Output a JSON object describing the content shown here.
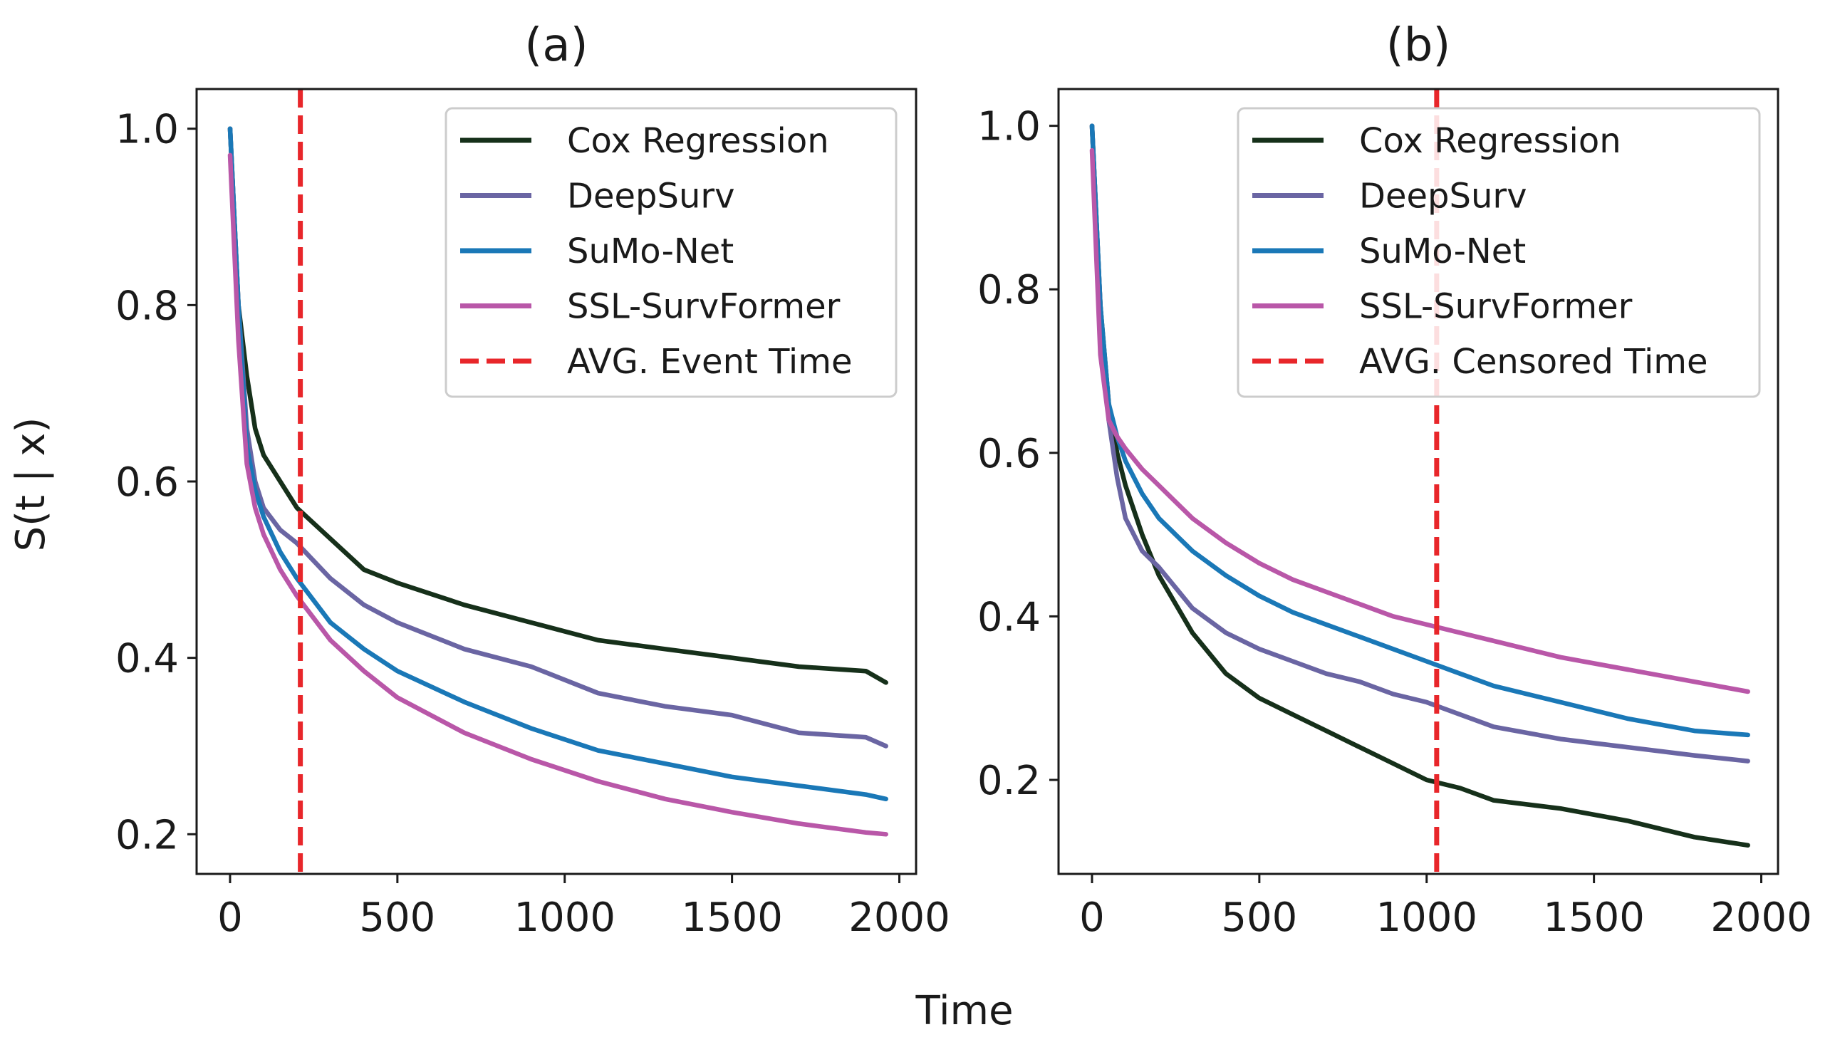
{
  "figure": {
    "ylabel": "S(t | x)",
    "xlabel": "Time"
  },
  "chart_data": [
    {
      "type": "line",
      "title": "(a)",
      "xlim": [
        -100,
        2050
      ],
      "ylim": [
        0.155,
        1.045
      ],
      "xticks": [
        0,
        500,
        1000,
        1500,
        2000
      ],
      "xtick_labels": [
        "0",
        "500",
        "1000",
        "1500",
        "2000"
      ],
      "yticks": [
        0.2,
        0.4,
        0.6,
        0.8,
        1.0
      ],
      "ytick_labels": [
        "0.2",
        "0.4",
        "0.6",
        "0.8",
        "1.0"
      ],
      "legend_position": "top-right",
      "series": [
        {
          "name": "Cox Regression",
          "color": "#16301a",
          "x": [
            0,
            25,
            50,
            75,
            100,
            150,
            200,
            300,
            400,
            500,
            700,
            900,
            1100,
            1300,
            1500,
            1700,
            1900,
            1960
          ],
          "y": [
            1.0,
            0.8,
            0.72,
            0.66,
            0.63,
            0.6,
            0.57,
            0.535,
            0.5,
            0.485,
            0.46,
            0.44,
            0.42,
            0.41,
            0.4,
            0.39,
            0.385,
            0.372
          ]
        },
        {
          "name": "DeepSurv",
          "color": "#6a65a3",
          "x": [
            0,
            25,
            50,
            75,
            100,
            150,
            200,
            300,
            400,
            500,
            700,
            900,
            1100,
            1300,
            1500,
            1700,
            1900,
            1960
          ],
          "y": [
            1.0,
            0.8,
            0.66,
            0.6,
            0.57,
            0.545,
            0.53,
            0.49,
            0.46,
            0.44,
            0.41,
            0.39,
            0.36,
            0.345,
            0.335,
            0.315,
            0.31,
            0.3
          ]
        },
        {
          "name": "SuMo-Net",
          "color": "#1a78b7",
          "x": [
            0,
            25,
            50,
            75,
            100,
            150,
            200,
            300,
            400,
            500,
            700,
            900,
            1100,
            1300,
            1500,
            1700,
            1900,
            1960
          ],
          "y": [
            1.0,
            0.8,
            0.64,
            0.59,
            0.56,
            0.52,
            0.49,
            0.44,
            0.41,
            0.385,
            0.35,
            0.32,
            0.295,
            0.28,
            0.265,
            0.255,
            0.245,
            0.24
          ]
        },
        {
          "name": "SSL-SurvFormer",
          "color": "#b957a8",
          "x": [
            0,
            25,
            50,
            75,
            100,
            150,
            200,
            300,
            400,
            500,
            700,
            900,
            1100,
            1300,
            1500,
            1700,
            1900,
            1960
          ],
          "y": [
            0.97,
            0.76,
            0.62,
            0.57,
            0.54,
            0.5,
            0.47,
            0.42,
            0.385,
            0.355,
            0.315,
            0.285,
            0.26,
            0.24,
            0.225,
            0.212,
            0.202,
            0.2
          ]
        }
      ],
      "reference_line": {
        "name": "AVG. Event Time",
        "x": 210,
        "color": "#e8262a"
      }
    },
    {
      "type": "line",
      "title": "(b)",
      "xlim": [
        -100,
        2050
      ],
      "ylim": [
        0.085,
        1.045
      ],
      "xticks": [
        0,
        500,
        1000,
        1500,
        2000
      ],
      "xtick_labels": [
        "0",
        "500",
        "1000",
        "1500",
        "2000"
      ],
      "yticks": [
        0.2,
        0.4,
        0.6,
        0.8,
        1.0
      ],
      "ytick_labels": [
        "0.2",
        "0.4",
        "0.6",
        "0.8",
        "1.0"
      ],
      "legend_position": "top-right",
      "series": [
        {
          "name": "Cox Regression",
          "color": "#16301a",
          "x": [
            0,
            25,
            50,
            75,
            100,
            150,
            200,
            300,
            400,
            500,
            600,
            700,
            800,
            900,
            1000,
            1100,
            1200,
            1400,
            1600,
            1800,
            1960
          ],
          "y": [
            1.0,
            0.78,
            0.66,
            0.6,
            0.56,
            0.5,
            0.45,
            0.38,
            0.33,
            0.3,
            0.28,
            0.26,
            0.24,
            0.22,
            0.2,
            0.19,
            0.175,
            0.165,
            0.15,
            0.13,
            0.12
          ]
        },
        {
          "name": "DeepSurv",
          "color": "#6a65a3",
          "x": [
            0,
            25,
            50,
            75,
            100,
            150,
            200,
            300,
            400,
            500,
            600,
            700,
            800,
            900,
            1000,
            1100,
            1200,
            1400,
            1600,
            1800,
            1960
          ],
          "y": [
            1.0,
            0.78,
            0.64,
            0.57,
            0.52,
            0.48,
            0.46,
            0.41,
            0.38,
            0.36,
            0.345,
            0.33,
            0.32,
            0.305,
            0.295,
            0.28,
            0.265,
            0.25,
            0.24,
            0.23,
            0.223
          ]
        },
        {
          "name": "SuMo-Net",
          "color": "#1a78b7",
          "x": [
            0,
            25,
            50,
            75,
            100,
            150,
            200,
            300,
            400,
            500,
            600,
            700,
            800,
            900,
            1000,
            1100,
            1200,
            1400,
            1600,
            1800,
            1960
          ],
          "y": [
            1.0,
            0.78,
            0.66,
            0.62,
            0.59,
            0.55,
            0.52,
            0.48,
            0.45,
            0.425,
            0.405,
            0.39,
            0.375,
            0.36,
            0.345,
            0.33,
            0.315,
            0.295,
            0.275,
            0.26,
            0.255
          ]
        },
        {
          "name": "SSL-SurvFormer",
          "color": "#b957a8",
          "x": [
            0,
            25,
            50,
            75,
            100,
            150,
            200,
            300,
            400,
            500,
            600,
            700,
            800,
            900,
            1000,
            1100,
            1200,
            1400,
            1600,
            1800,
            1960
          ],
          "y": [
            0.97,
            0.72,
            0.64,
            0.62,
            0.605,
            0.58,
            0.56,
            0.52,
            0.49,
            0.465,
            0.445,
            0.43,
            0.415,
            0.4,
            0.39,
            0.38,
            0.37,
            0.35,
            0.335,
            0.32,
            0.308
          ]
        }
      ],
      "reference_line": {
        "name": "AVG. Censored Time",
        "x": 1030,
        "color": "#e8262a"
      }
    }
  ]
}
